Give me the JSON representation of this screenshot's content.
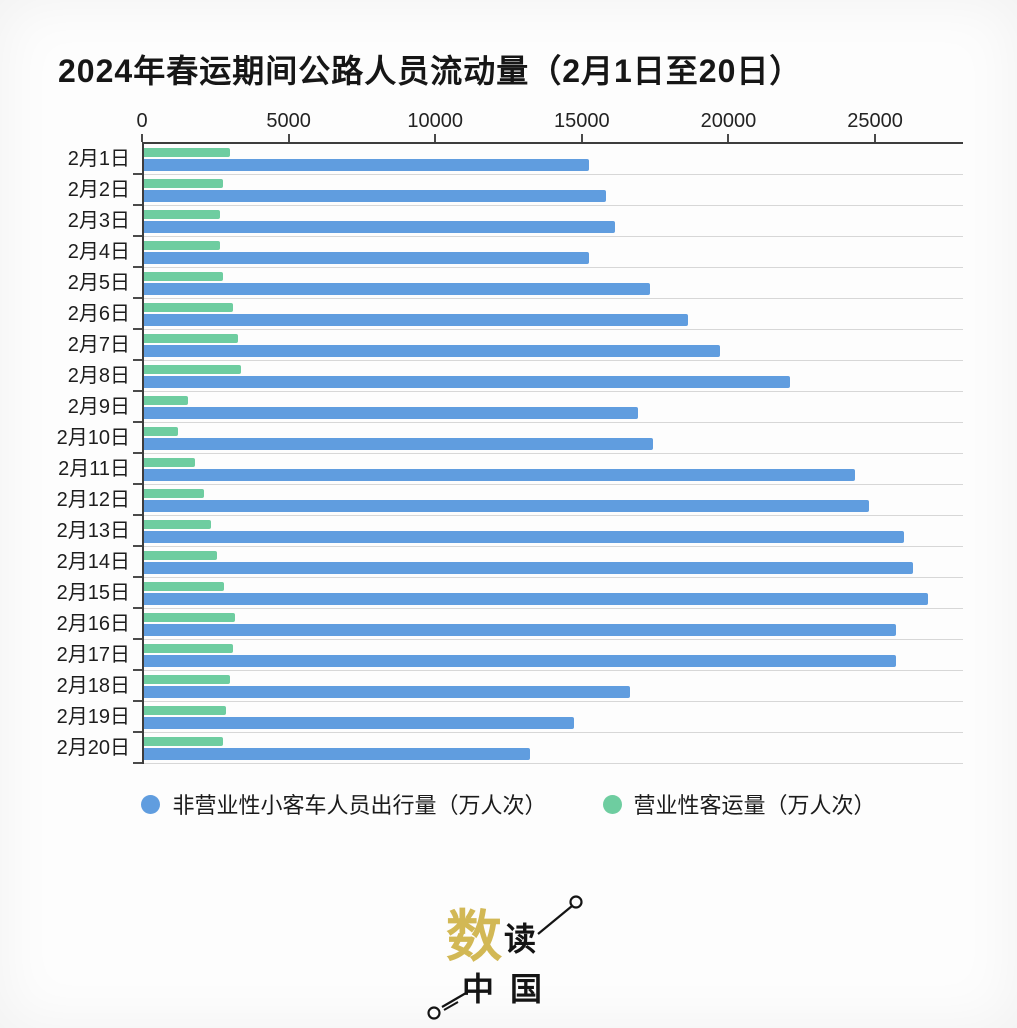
{
  "title": "2024年春运期间公路人员流动量（2月1日至20日）",
  "chart_data": {
    "type": "bar",
    "orientation": "horizontal",
    "title": "2024年春运期间公路人员流动量（2月1日至20日）",
    "categories": [
      "2月1日",
      "2月2日",
      "2月3日",
      "2月4日",
      "2月5日",
      "2月6日",
      "2月7日",
      "2月8日",
      "2月9日",
      "2月10日",
      "2月11日",
      "2月12日",
      "2月13日",
      "2月14日",
      "2月15日",
      "2月16日",
      "2月17日",
      "2月18日",
      "2月19日",
      "2月20日"
    ],
    "series": [
      {
        "name": "非营业性小客车人员出行量（万人次）",
        "color": "#609ddf",
        "values": [
          15200,
          15800,
          16100,
          15200,
          17300,
          18600,
          19700,
          22100,
          16900,
          17400,
          24300,
          24800,
          26000,
          26300,
          26800,
          25700,
          25700,
          16600,
          14700,
          13200
        ]
      },
      {
        "name": "营业性客运量（万人次）",
        "color": "#6ecda0",
        "values": [
          2950,
          2700,
          2600,
          2600,
          2700,
          3050,
          3200,
          3300,
          1500,
          1150,
          1750,
          2050,
          2300,
          2500,
          2750,
          3100,
          3050,
          2950,
          2800,
          2700
        ]
      }
    ],
    "x_ticks": [
      0,
      5000,
      10000,
      15000,
      20000,
      25000
    ],
    "xlim": [
      0,
      28000
    ],
    "xlabel": "",
    "ylabel": "",
    "grid": "row-separators-horizontal",
    "legend_position": "bottom",
    "bar_order_in_group": [
      "营业性客运量（万人次）",
      "非营业性小客车人员出行量（万人次）"
    ]
  },
  "legend": {
    "items": [
      {
        "label": "非营业性小客车人员出行量（万人次）",
        "color": "#609ddf"
      },
      {
        "label": "营业性客运量（万人次）",
        "color": "#6ecda0"
      }
    ]
  },
  "watermark": {
    "big": "数",
    "mid": "读",
    "bottom_left": "中",
    "bottom_right": "国",
    "accent_color": "#d2b855",
    "ink_color": "#141414"
  }
}
